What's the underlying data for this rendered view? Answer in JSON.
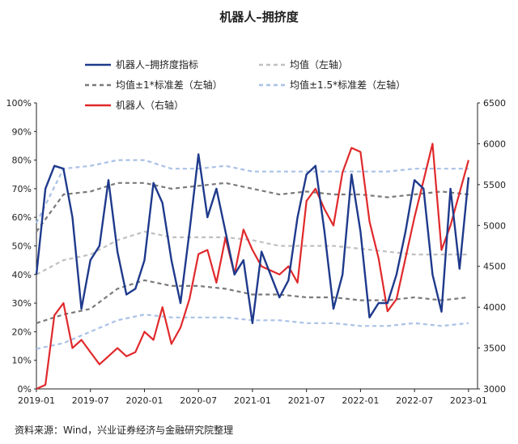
{
  "chart_data": {
    "type": "line",
    "title": "机器人–拥挤度",
    "source": "资料来源：Wind，兴业证券经济与金融研究院整理",
    "x_ticks": [
      "2019-01",
      "2019-07",
      "2020-01",
      "2020-07",
      "2021-01",
      "2021-07",
      "2022-01",
      "2022-07",
      "2023-01"
    ],
    "y_left": {
      "ylim": [
        0,
        100
      ],
      "unit": "%",
      "tick_labels": [
        "0%",
        "10%",
        "20%",
        "30%",
        "40%",
        "50%",
        "60%",
        "70%",
        "80%",
        "90%",
        "100%"
      ]
    },
    "y_right": {
      "ylim": [
        3000,
        6500
      ],
      "tick_labels": [
        "3000",
        "3500",
        "4000",
        "4500",
        "5000",
        "5500",
        "6000",
        "6500"
      ]
    },
    "legend": [
      {
        "name": "机器人–拥挤度指标",
        "style": "solid-dark-blue"
      },
      {
        "name": "均值（左轴）",
        "style": "dashed-light-gray"
      },
      {
        "name": "均值±1*标准差（左轴）",
        "style": "dashed-dark-gray"
      },
      {
        "name": "均值±1.5*标准差（左轴）",
        "style": "dashed-light-blue"
      },
      {
        "name": "机器人（右轴）",
        "style": "solid-red"
      }
    ],
    "series": [
      {
        "name": "机器人–拥挤度指标",
        "axis": "left",
        "color": "#1f3a8c",
        "x": [
          "2019-01",
          "2019-02",
          "2019-03",
          "2019-04",
          "2019-05",
          "2019-06",
          "2019-07",
          "2019-08",
          "2019-09",
          "2019-10",
          "2019-11",
          "2019-12",
          "2020-01",
          "2020-02",
          "2020-03",
          "2020-04",
          "2020-05",
          "2020-06",
          "2020-07",
          "2020-08",
          "2020-09",
          "2020-10",
          "2020-11",
          "2020-12",
          "2021-01",
          "2021-02",
          "2021-03",
          "2021-04",
          "2021-05",
          "2021-06",
          "2021-07",
          "2021-08",
          "2021-09",
          "2021-10",
          "2021-11",
          "2021-12",
          "2022-01",
          "2022-02",
          "2022-03",
          "2022-04",
          "2022-05",
          "2022-06",
          "2022-07",
          "2022-08",
          "2022-09",
          "2022-10",
          "2022-11",
          "2022-12",
          "2023-01"
        ],
        "values": [
          40,
          70,
          78,
          77,
          60,
          28,
          45,
          50,
          73,
          48,
          33,
          35,
          45,
          72,
          65,
          45,
          30,
          55,
          82,
          60,
          70,
          55,
          40,
          45,
          23,
          48,
          40,
          32,
          38,
          60,
          75,
          78,
          55,
          28,
          40,
          75,
          55,
          25,
          30,
          30,
          40,
          55,
          73,
          70,
          40,
          27,
          70,
          42,
          74
        ]
      },
      {
        "name": "均值（左轴）",
        "axis": "left",
        "color": "#c0c0c0",
        "x": [
          "2019-01",
          "2019-04",
          "2019-07",
          "2019-10",
          "2020-01",
          "2020-04",
          "2020-07",
          "2020-10",
          "2021-01",
          "2021-04",
          "2021-07",
          "2021-10",
          "2022-01",
          "2022-04",
          "2022-07",
          "2022-10",
          "2023-01"
        ],
        "values": [
          40,
          45,
          47,
          52,
          55,
          53,
          53,
          53,
          52,
          50,
          50,
          50,
          49,
          48,
          47,
          47,
          47
        ]
      },
      {
        "name": "均值+1*标准差（左轴）",
        "axis": "left",
        "color": "#7a7a7a",
        "x": [
          "2019-01",
          "2019-04",
          "2019-07",
          "2019-10",
          "2020-01",
          "2020-04",
          "2020-07",
          "2020-10",
          "2021-01",
          "2021-04",
          "2021-07",
          "2021-10",
          "2022-01",
          "2022-04",
          "2022-07",
          "2022-10",
          "2023-01"
        ],
        "values": [
          55,
          68,
          69,
          72,
          72,
          70,
          71,
          72,
          70,
          68,
          69,
          68,
          68,
          67,
          68,
          69,
          68
        ]
      },
      {
        "name": "均值-1*标准差（左轴）",
        "axis": "left",
        "color": "#7a7a7a",
        "x": [
          "2019-01",
          "2019-04",
          "2019-07",
          "2019-10",
          "2020-01",
          "2020-04",
          "2020-07",
          "2020-10",
          "2021-01",
          "2021-04",
          "2021-07",
          "2021-10",
          "2022-01",
          "2022-04",
          "2022-07",
          "2022-10",
          "2023-01"
        ],
        "values": [
          23,
          26,
          28,
          35,
          38,
          36,
          36,
          35,
          33,
          33,
          32,
          32,
          31,
          31,
          32,
          31,
          32
        ]
      },
      {
        "name": "均值+1.5*标准差（左轴）",
        "axis": "left",
        "color": "#a9c1e6",
        "x": [
          "2019-01",
          "2019-04",
          "2019-07",
          "2019-10",
          "2020-01",
          "2020-04",
          "2020-07",
          "2020-10",
          "2021-01",
          "2021-04",
          "2021-07",
          "2021-10",
          "2022-01",
          "2022-04",
          "2022-07",
          "2022-10",
          "2023-01"
        ],
        "values": [
          58,
          77,
          78,
          80,
          80,
          77,
          77,
          78,
          76,
          76,
          76,
          76,
          76,
          76,
          77,
          77,
          77
        ]
      },
      {
        "name": "均值-1.5*标准差（左轴）",
        "axis": "left",
        "color": "#a9c1e6",
        "x": [
          "2019-01",
          "2019-04",
          "2019-07",
          "2019-10",
          "2020-01",
          "2020-04",
          "2020-07",
          "2020-10",
          "2021-01",
          "2021-04",
          "2021-07",
          "2021-10",
          "2022-01",
          "2022-04",
          "2022-07",
          "2022-10",
          "2023-01"
        ],
        "values": [
          14,
          16,
          20,
          24,
          26,
          25,
          25,
          25,
          24,
          24,
          23,
          23,
          22,
          22,
          23,
          22,
          23
        ]
      },
      {
        "name": "机器人（右轴）",
        "axis": "right",
        "color": "#e0292b",
        "x": [
          "2019-01",
          "2019-02",
          "2019-03",
          "2019-04",
          "2019-05",
          "2019-06",
          "2019-07",
          "2019-08",
          "2019-09",
          "2019-10",
          "2019-11",
          "2019-12",
          "2020-01",
          "2020-02",
          "2020-03",
          "2020-04",
          "2020-05",
          "2020-06",
          "2020-07",
          "2020-08",
          "2020-09",
          "2020-10",
          "2020-11",
          "2020-12",
          "2021-01",
          "2021-02",
          "2021-03",
          "2021-04",
          "2021-05",
          "2021-06",
          "2021-07",
          "2021-08",
          "2021-09",
          "2021-10",
          "2021-11",
          "2021-12",
          "2022-01",
          "2022-02",
          "2022-03",
          "2022-04",
          "2022-05",
          "2022-06",
          "2022-07",
          "2022-08",
          "2022-09",
          "2022-10",
          "2022-11",
          "2022-12",
          "2023-01"
        ],
        "values": [
          3000,
          3050,
          3900,
          4050,
          3500,
          3600,
          3450,
          3300,
          3400,
          3500,
          3400,
          3450,
          3700,
          3600,
          4000,
          3550,
          3750,
          4100,
          4650,
          4700,
          4300,
          4850,
          4400,
          4950,
          4700,
          4500,
          4450,
          4400,
          4500,
          4300,
          5300,
          5450,
          5200,
          5000,
          5650,
          5950,
          5900,
          5050,
          4600,
          3950,
          4100,
          4600,
          5100,
          5550,
          6000,
          4700,
          5000,
          5400,
          5800
        ]
      }
    ]
  }
}
